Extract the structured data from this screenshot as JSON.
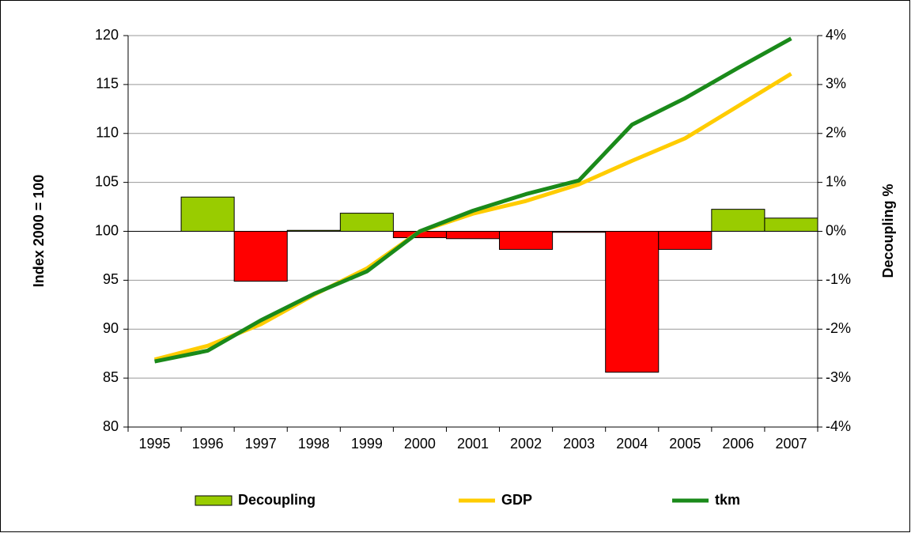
{
  "chart_data": {
    "type": "bar_line",
    "y_label": "Index 2000 = 100",
    "y2_label": "Decoupling %",
    "categories": [
      "1995",
      "1996",
      "1997",
      "1998",
      "1999",
      "2000",
      "2001",
      "2002",
      "2003",
      "2004",
      "2005",
      "2006",
      "2007"
    ],
    "series": [
      {
        "name": "Decoupling",
        "type": "bar",
        "axis": "y2",
        "color": "#99cc00",
        "negative_color": "#ff0000",
        "values": [
          null,
          0.7,
          -1.02,
          0.02,
          0.37,
          -0.13,
          -0.15,
          -0.37,
          -0.02,
          -2.88,
          -0.37,
          0.45,
          0.27
        ]
      },
      {
        "name": "GDP",
        "type": "line",
        "color": "#ffcc00",
        "values": [
          86.9,
          88.3,
          90.5,
          93.5,
          96.2,
          100,
          101.8,
          103.1,
          104.8,
          107.2,
          109.5,
          112.8,
          116.1
        ]
      },
      {
        "name": "tkm",
        "type": "line",
        "color": "#1a8a1a",
        "values": [
          86.7,
          87.8,
          90.9,
          93.6,
          95.9,
          100,
          102.1,
          103.8,
          105.2,
          110.9,
          113.6,
          116.7,
          119.7
        ]
      }
    ],
    "ylim": [
      80,
      120
    ],
    "yticks": [
      80,
      85,
      90,
      95,
      100,
      105,
      110,
      115,
      120
    ],
    "y2lim": [
      -4,
      4
    ],
    "y2ticks": [
      {
        "value": -4,
        "label": "-4%"
      },
      {
        "value": -3,
        "label": "-3%"
      },
      {
        "value": -2,
        "label": "-2%"
      },
      {
        "value": -1,
        "label": "-1%"
      },
      {
        "value": 0,
        "label": "0%"
      },
      {
        "value": 1,
        "label": "1%"
      },
      {
        "value": 2,
        "label": "2%"
      },
      {
        "value": 3,
        "label": "3%"
      },
      {
        "value": 4,
        "label": "4%"
      }
    ],
    "grid": true,
    "legend": "bottom"
  }
}
